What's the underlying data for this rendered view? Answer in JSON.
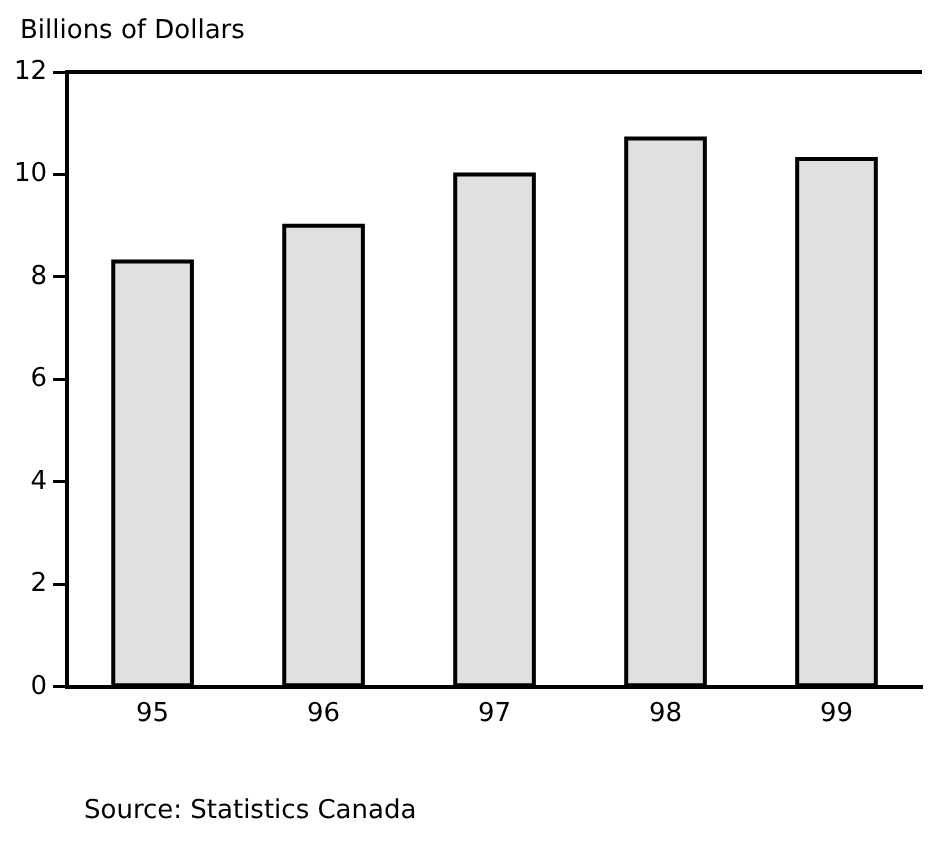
{
  "chart_data": {
    "type": "bar",
    "ylabel": "Billions of Dollars",
    "categories": [
      "95",
      "96",
      "97",
      "98",
      "99"
    ],
    "values": [
      8.3,
      9.0,
      10.0,
      10.7,
      10.3
    ],
    "color": "#e0e0e0",
    "ylim": [
      0,
      12
    ],
    "yticks": [
      0,
      2,
      4,
      6,
      8,
      10,
      12
    ],
    "grid": false,
    "legend": false,
    "annotations": [
      "Source:  Statistics Canada"
    ]
  }
}
